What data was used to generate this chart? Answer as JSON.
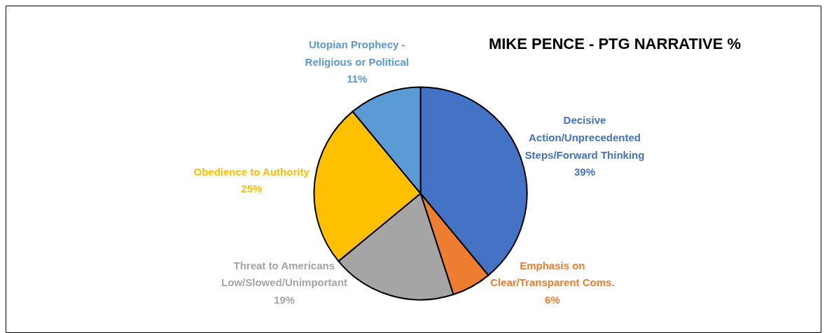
{
  "chart_data": {
    "type": "pie",
    "title": "MIKE PENCE - PTG NARRATIVE %",
    "categories": [
      "Decisive Action/Unprecedented Steps/Forward Thinking",
      "Emphasis on Clear/Transparent Coms.",
      "Threat to Americans Low/Slowed/Unimportant",
      "Obedience to Authority",
      "Utopian Prophecy - Religious or Political"
    ],
    "values": [
      39,
      6,
      19,
      25,
      11
    ],
    "colors": [
      "#4472c4",
      "#ed7d31",
      "#a5a5a5",
      "#ffc000",
      "#5b9bd5"
    ],
    "value_labels": [
      "39%",
      "6%",
      "19%",
      "25%",
      "11%"
    ]
  }
}
